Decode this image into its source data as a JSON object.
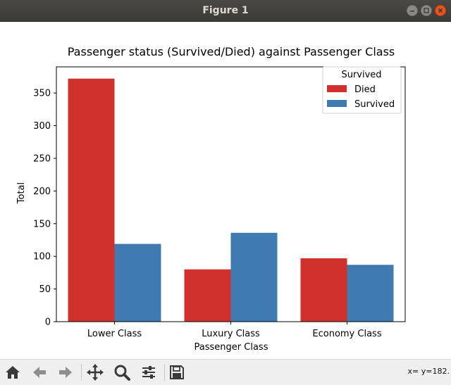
{
  "window": {
    "title": "Figure 1"
  },
  "chart_data": {
    "type": "bar",
    "title": "Passenger status (Survived/Died) against Passenger Class",
    "xlabel": "Passenger Class",
    "ylabel": "Total",
    "categories": [
      "Lower Class",
      "Luxury Class",
      "Economy Class"
    ],
    "series": [
      {
        "name": "Died",
        "values": [
          372,
          80,
          97
        ],
        "color": "#d0312d"
      },
      {
        "name": "Survived",
        "values": [
          119,
          136,
          87
        ],
        "color": "#3f7bb0"
      }
    ],
    "ylim": [
      0,
      390
    ],
    "yticks": [
      0,
      50,
      100,
      150,
      200,
      250,
      300,
      350
    ],
    "legend": {
      "title": "Survived",
      "placement": "upper right"
    },
    "grid": false
  },
  "toolbar": {
    "icons": [
      "home-icon",
      "back-icon",
      "forward-icon",
      "pan-icon",
      "zoom-icon",
      "configure-icon",
      "save-icon"
    ],
    "coords_text": "x= y=182."
  }
}
